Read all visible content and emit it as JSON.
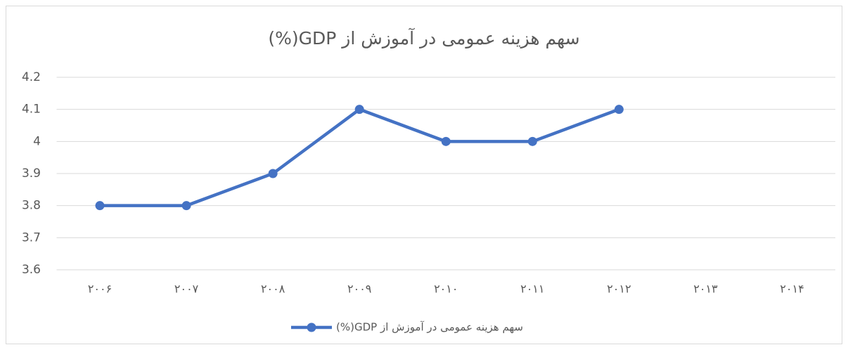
{
  "chart_data": {
    "type": "line",
    "title": "سهم هزینه عمومی در آموزش از GDP(%)",
    "categories": [
      "۲۰۰۶",
      "۲۰۰۷",
      "۲۰۰۸",
      "۲۰۰۹",
      "۲۰۱۰",
      "۲۰۱۱",
      "۲۰۱۲",
      "۲۰۱۳",
      "۲۰۱۴"
    ],
    "series": [
      {
        "name": "سهم هزینه عمومی در آموزش از GDP(%)",
        "color": "#4472c4",
        "values": [
          3.8,
          3.8,
          3.9,
          4.1,
          4,
          4,
          4.1,
          null,
          null
        ]
      }
    ],
    "ylim": [
      3.6,
      4.2
    ],
    "yticks": [
      3.6,
      3.7,
      3.8,
      3.9,
      4,
      4.1,
      4.2
    ],
    "grid": true,
    "legend": "bottom"
  }
}
